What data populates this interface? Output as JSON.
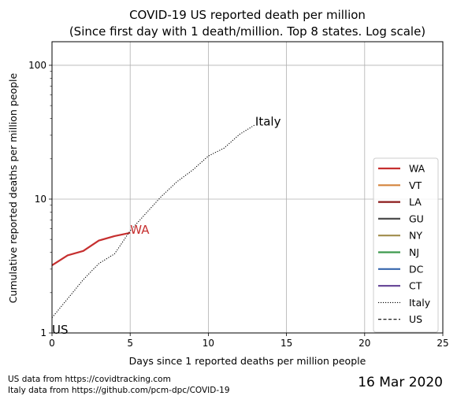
{
  "chart_data": {
    "type": "line",
    "title": "COVID-19 US reported death per million",
    "subtitle": "(Since first day with 1 death/million. Top 8 states. Log scale)",
    "xlabel": "Days since 1 reported deaths per million people",
    "ylabel": "Cumulative reported deaths per million people",
    "xlim": [
      0,
      25
    ],
    "ylim": [
      1,
      150
    ],
    "y_scale": "log",
    "x_ticks": [
      0,
      5,
      10,
      15,
      20,
      25
    ],
    "x_tick_labels": [
      "0",
      "5",
      "10",
      "15",
      "20",
      "25"
    ],
    "y_ticks": [
      1,
      10,
      100
    ],
    "y_tick_labels": [
      "1",
      "10",
      "100"
    ],
    "grid": true,
    "legend_position": "right",
    "series": [
      {
        "name": "WA",
        "color": "#c62f2f",
        "style": "solid",
        "x": [
          0,
          1,
          2,
          3,
          4,
          5
        ],
        "y": [
          3.2,
          3.8,
          4.1,
          4.9,
          5.3,
          5.6
        ]
      },
      {
        "name": "VT",
        "color": "#d4843c",
        "style": "solid",
        "x": [],
        "y": []
      },
      {
        "name": "LA",
        "color": "#8b1a1a",
        "style": "solid",
        "x": [],
        "y": []
      },
      {
        "name": "GU",
        "color": "#4d4d4d",
        "style": "solid",
        "x": [],
        "y": []
      },
      {
        "name": "NY",
        "color": "#a08c4b",
        "style": "solid",
        "x": [],
        "y": []
      },
      {
        "name": "NJ",
        "color": "#3d9a4e",
        "style": "solid",
        "x": [],
        "y": []
      },
      {
        "name": "DC",
        "color": "#3666ad",
        "style": "solid",
        "x": [],
        "y": []
      },
      {
        "name": "CT",
        "color": "#6b4c9a",
        "style": "solid",
        "x": [],
        "y": []
      },
      {
        "name": "Italy",
        "color": "#000000",
        "style": "dotted",
        "x": [
          0,
          1,
          2,
          3,
          4,
          5,
          6,
          7,
          8,
          9,
          10,
          11,
          12,
          13
        ],
        "y": [
          1.3,
          1.8,
          2.5,
          3.3,
          3.9,
          5.8,
          7.8,
          10.5,
          13.5,
          16.5,
          21,
          24,
          30.5,
          36
        ]
      },
      {
        "name": "US",
        "color": "#000000",
        "style": "dashed",
        "x": [
          0
        ],
        "y": [
          1.0
        ]
      }
    ],
    "annotations": [
      {
        "text": "Italy",
        "x": 13,
        "y": 36,
        "color": "#000000"
      },
      {
        "text": "WA",
        "x": 5,
        "y": 5.6,
        "color": "#c62f2f"
      },
      {
        "text": "US",
        "x": 0,
        "y": 1.0,
        "color": "#000000"
      }
    ]
  },
  "footer": {
    "source_us": "US data from https://covidtracking.com",
    "source_italy": "Italy data from https://github.com/pcm-dpc/COVID-19",
    "date": "16 Mar 2020"
  }
}
